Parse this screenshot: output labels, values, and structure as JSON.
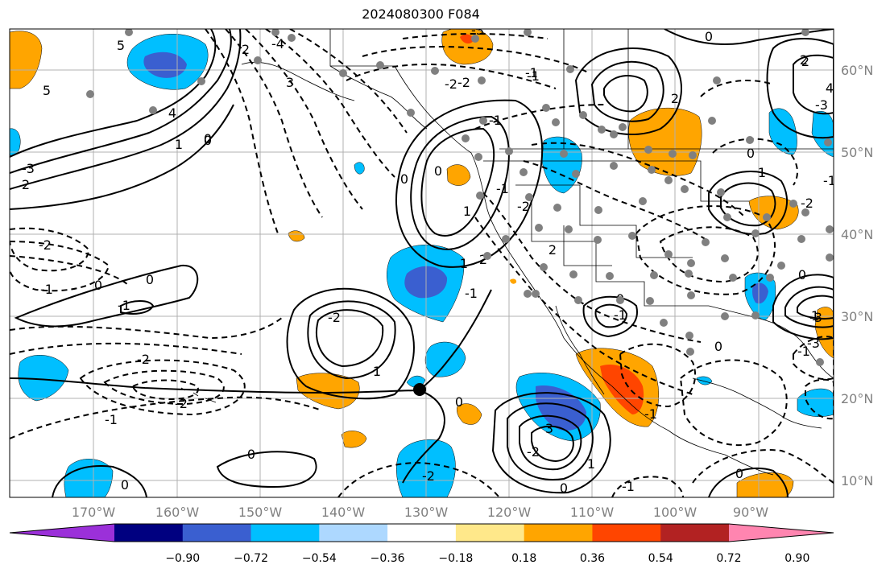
{
  "title": "2024080300 F084",
  "map": {
    "lon_ticks": [
      "170°W",
      "160°W",
      "150°W",
      "140°W",
      "130°W",
      "120°W",
      "110°W",
      "100°W",
      "90°W"
    ],
    "lat_ticks": [
      "60°N",
      "50°N",
      "40°N",
      "30°N",
      "20°N",
      "10°N"
    ],
    "lon_range": [
      -180,
      -80
    ],
    "lat_range": [
      8,
      65
    ],
    "contour_labels": [
      "5",
      "5",
      "4",
      "3",
      "2",
      "2",
      "0",
      "-2",
      "-4",
      "-3",
      "-2",
      "-1",
      "-1",
      "0",
      "-2",
      "-1",
      "-2",
      "1",
      "-2",
      "0",
      "1",
      "2",
      "-1",
      "0",
      "2",
      "-1",
      "3",
      "-1",
      "-2",
      "-1",
      "0",
      "1",
      "0",
      "-1",
      "0",
      "-2",
      "-1",
      "-2",
      "1",
      "2",
      "1",
      "-3",
      "-2",
      "0",
      "0",
      "0",
      "0",
      "-1",
      "0",
      "1",
      "-2",
      "0",
      "-1",
      "-3",
      "-3",
      "2",
      "0",
      "-3",
      "4",
      "0",
      "-1",
      "0",
      "-1",
      "2",
      "1"
    ]
  },
  "colorbar": {
    "labels": [
      "−0.90",
      "−0.72",
      "−0.54",
      "−0.36",
      "−0.18",
      "0.18",
      "0.36",
      "0.54",
      "0.72",
      "0.90"
    ],
    "colors": [
      "#9b30d9",
      "#000080",
      "#3a5fd0",
      "#00bfff",
      "#add8ff",
      "#ffffff",
      "#ffe88a",
      "#ffa500",
      "#ff4500",
      "#b22222",
      "#ff85b0"
    ]
  },
  "colors": {
    "blue_light": "#00bfff",
    "blue_mid": "#3a5fd0",
    "orange": "#ffa500",
    "red_orange": "#ff4500",
    "stations": "#808080"
  }
}
